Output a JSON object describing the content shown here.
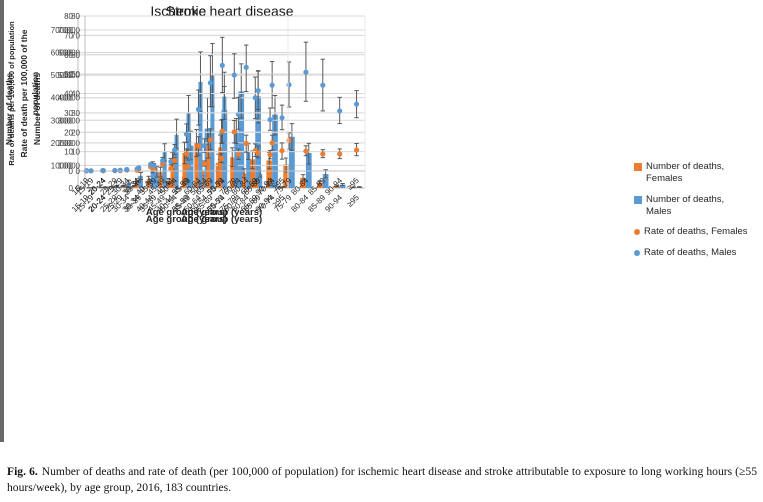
{
  "caption": {
    "label": "Fig. 6.",
    "text": "Number of deaths and rate of death (per 100,000 of population) for ischemic heart disease and stroke attributable to exposure to long working hours (≥55 hours/week), by age group, 2016, 183 countries."
  },
  "colors": {
    "females": "#ED7D31",
    "males": "#5B9BD5",
    "error_bar": "#595959",
    "gridline": "#D9D9D9",
    "axis_line": "#BFBFBF",
    "text": "#262626"
  },
  "legend": {
    "position": "right",
    "items": [
      {
        "label": "Number of deaths, Females",
        "marker": "square",
        "color": "#ED7D31"
      },
      {
        "label": "Number of deaths, Males",
        "marker": "square",
        "color": "#5B9BD5"
      },
      {
        "label": "Rate of deaths, Females",
        "marker": "dot",
        "color": "#ED7D31"
      },
      {
        "label": "Rate of deaths, Males",
        "marker": "dot",
        "color": "#5B9BD5"
      }
    ]
  },
  "age_groups": [
    "15-19",
    "20-24",
    "25-29",
    "30-34",
    "35-39",
    "40-44",
    "45-49",
    "50-54",
    "55-59",
    "60-64",
    "65-69",
    "70-74",
    "75-79",
    "80-84",
    "85-89",
    "90-94",
    "≥95"
  ],
  "chart_data": [
    {
      "id": "ihd-deaths",
      "type": "bar",
      "title": "Ischemic heart disease",
      "xlabel": "Age group (years)",
      "ylabel_lines": [
        "Number of deaths"
      ],
      "ylim": [
        0,
        70000
      ],
      "ytick_step": 10000,
      "grid": "on",
      "series": [
        {
          "name": "Number of deaths, Females",
          "color": "#ED7D31",
          "values": [
            50,
            150,
            300,
            800,
            1800,
            3100,
            5000,
            7900,
            11200,
            12900,
            12700,
            12200,
            10400,
            4500,
            2400,
            900,
            300
          ],
          "err_lo": [
            30,
            100,
            200,
            500,
            1200,
            2100,
            3400,
            5400,
            7300,
            8700,
            8600,
            8500,
            7100,
            3200,
            1700,
            600,
            200
          ],
          "err_hi": [
            80,
            250,
            450,
            1100,
            2500,
            4200,
            6700,
            10500,
            15000,
            16600,
            16400,
            15800,
            13300,
            5900,
            3200,
            1200,
            450
          ]
        },
        {
          "name": "Number of deaths, Males",
          "color": "#5B9BD5",
          "values": [
            100,
            300,
            800,
            3300,
            7000,
            11800,
            18800,
            26300,
            34600,
            42800,
            40600,
            32500,
            22700,
            15500,
            6200,
            1500,
            400
          ],
          "err_lo": [
            60,
            200,
            500,
            2200,
            4800,
            8000,
            12500,
            13000,
            24000,
            31000,
            28800,
            23500,
            16500,
            10600,
            4500,
            1100,
            300
          ],
          "err_hi": [
            150,
            450,
            1100,
            4800,
            9700,
            16000,
            25200,
            40000,
            45000,
            55000,
            52000,
            41000,
            28500,
            19800,
            8100,
            2000,
            600
          ]
        }
      ]
    },
    {
      "id": "stroke-deaths",
      "type": "bar",
      "title": "Stroke",
      "xlabel": "Age group (years)",
      "ylabel_lines": [
        "Number of deaths"
      ],
      "ylim": [
        0,
        70000
      ],
      "ytick_step": 10000,
      "grid": "on",
      "series": [
        {
          "name": "Number of deaths, Females",
          "color": "#ED7D31",
          "values": [
            50,
            200,
            400,
            900,
            2200,
            3900,
            7000,
            12000,
            15500,
            19800,
            19000,
            18000,
            13600,
            6500,
            2800,
            1300,
            400
          ],
          "err_lo": [
            30,
            130,
            270,
            600,
            1500,
            2700,
            4900,
            8400,
            10800,
            13900,
            13300,
            12600,
            9500,
            4600,
            2000,
            900,
            280
          ],
          "err_hi": [
            80,
            300,
            600,
            1300,
            3000,
            5200,
            9200,
            15700,
            20300,
            25900,
            24800,
            23500,
            17800,
            8500,
            3700,
            1700,
            520
          ]
        },
        {
          "name": "Number of deaths, Males",
          "color": "#5B9BD5",
          "values": [
            100,
            300,
            800,
            2500,
            5400,
            9300,
            16000,
            23500,
            33000,
            47000,
            49800,
            40500,
            25200,
            16000,
            6300,
            1600,
            500
          ],
          "err_lo": [
            60,
            200,
            500,
            1700,
            3800,
            6800,
            12000,
            17400,
            25000,
            34000,
            36000,
            30400,
            19700,
            12700,
            4800,
            1200,
            380
          ],
          "err_hi": [
            150,
            450,
            1100,
            3500,
            6900,
            11600,
            19600,
            30500,
            41000,
            60300,
            64000,
            51300,
            30800,
            19600,
            7600,
            2000,
            650
          ]
        }
      ]
    },
    {
      "id": "ihd-rates",
      "type": "scatter",
      "title": "",
      "xlabel": "Age group (years)",
      "ylabel_lines": [
        "Rate of death per 100,000 of the",
        "population"
      ],
      "ylim": [
        0,
        80
      ],
      "ytick_step": 10,
      "grid": "on",
      "series": [
        {
          "name": "Rate of deaths, Females",
          "color": "#ED7D31",
          "values": [
            0.1,
            0.1,
            0.2,
            0.4,
            0.9,
            1.3,
            2.3,
            3.8,
            6.5,
            8.6,
            10.5,
            14.5,
            15.8,
            10.3,
            8.8,
            8.8,
            10.8
          ],
          "err_lo": [
            0.05,
            0.07,
            0.13,
            0.27,
            0.6,
            0.8,
            1.5,
            2.5,
            4.4,
            6.0,
            7.4,
            10.8,
            11.2,
            7.9,
            6.9,
            6.4,
            7.9
          ],
          "err_hi": [
            0.15,
            0.16,
            0.3,
            0.55,
            1.25,
            1.8,
            3.2,
            5.2,
            8.9,
            11.4,
            14.0,
            18.5,
            19.7,
            13.0,
            11.0,
            11.4,
            14.2
          ]
        },
        {
          "name": "Rate of deaths, Males",
          "color": "#5B9BD5",
          "values": [
            0.2,
            0.3,
            0.4,
            1.0,
            2.6,
            4.8,
            8.2,
            13.0,
            20.0,
            29.3,
            37.8,
            44.3,
            44.5,
            51.0,
            44.3,
            31.0,
            34.5
          ],
          "err_lo": [
            0.1,
            0.2,
            0.26,
            0.65,
            1.6,
            3.2,
            5.6,
            9.6,
            14.2,
            21.5,
            27.0,
            32.5,
            33.0,
            36.0,
            31.0,
            24.5,
            27.5
          ],
          "err_hi": [
            0.3,
            0.45,
            0.6,
            1.5,
            3.8,
            6.5,
            10.8,
            16.6,
            26.3,
            38.0,
            48.5,
            56.5,
            56.3,
            66.5,
            57.7,
            38.0,
            41.5
          ]
        }
      ]
    },
    {
      "id": "stroke-rates",
      "type": "scatter",
      "title": "",
      "xlabel": "Age group (years)",
      "ylabel_lines": [
        "Rate of deaths per 100,000 of population"
      ],
      "ylim": [
        0,
        80
      ],
      "ytick_step": 10,
      "grid": "on",
      "series": [
        {
          "name": "Rate of deaths, Females",
          "color": "#ED7D31",
          "values": [
            0.1,
            0.2,
            0.2,
            0.5,
            1.1,
            2.1,
            3.6,
            5.4,
            8.9,
            12.9,
            16.1,
            20.6,
            20.2,
            14.2,
            9.4,
            8.4,
            10.5
          ],
          "err_lo": [
            0.06,
            0.12,
            0.14,
            0.35,
            0.75,
            1.5,
            2.6,
            3.9,
            6.6,
            8.1,
            11.0,
            14.5,
            14.5,
            9.7,
            6.8,
            6.3,
            6.1
          ],
          "err_hi": [
            0.16,
            0.3,
            0.3,
            0.7,
            1.5,
            2.8,
            4.7,
            7.0,
            11.4,
            17.7,
            21.8,
            26.6,
            26.1,
            18.5,
            12.9,
            10.6,
            14.5
          ]
        },
        {
          "name": "Rate of deaths, Males",
          "color": "#5B9BD5",
          "values": [
            0.1,
            0.3,
            0.3,
            0.8,
            1.6,
            3.2,
            5.4,
            10.8,
            19.0,
            31.8,
            45.5,
            54.5,
            49.5,
            53.5,
            41.5,
            26.5,
            27.5
          ],
          "err_lo": [
            0.06,
            0.2,
            0.2,
            0.5,
            1.0,
            2.3,
            4.0,
            8.3,
            14.8,
            23.7,
            33.2,
            40.5,
            37.5,
            41.0,
            31.8,
            21.0,
            21.3
          ],
          "err_hi": [
            0.2,
            0.45,
            0.45,
            1.2,
            2.3,
            4.2,
            7.0,
            13.7,
            24.3,
            41.8,
            59.5,
            69.0,
            60.5,
            65.0,
            51.5,
            32.5,
            34.0
          ]
        }
      ]
    }
  ]
}
